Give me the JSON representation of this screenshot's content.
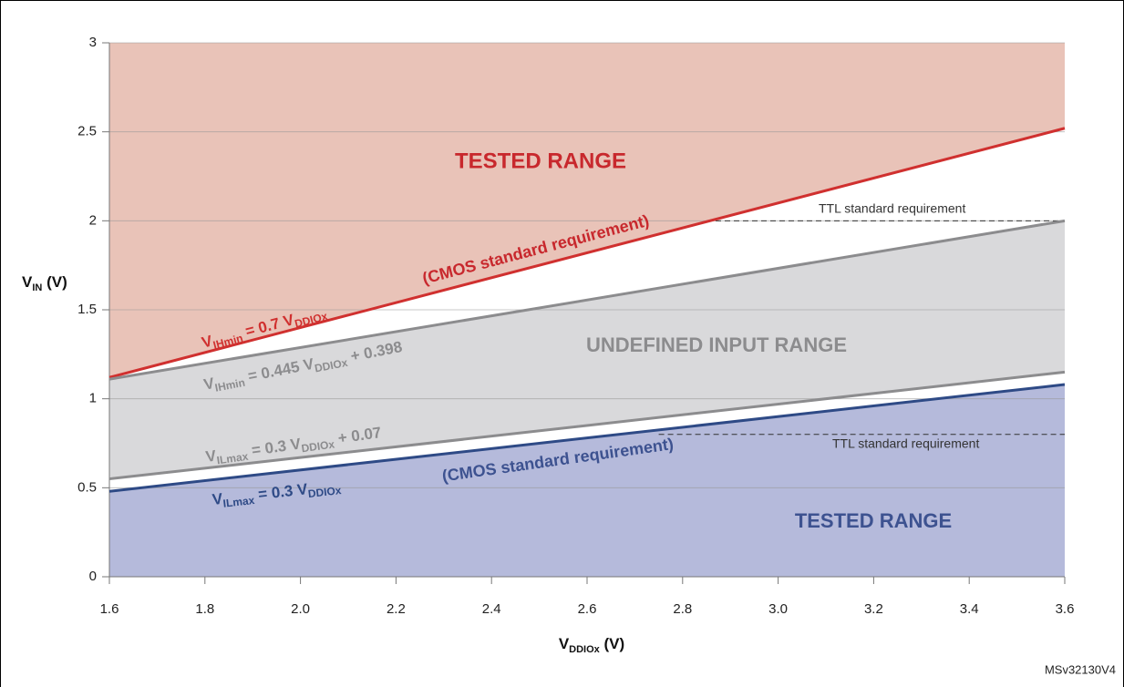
{
  "chart_data": {
    "type": "line",
    "xlim": [
      1.6,
      3.6
    ],
    "ylim": [
      0,
      3
    ],
    "xticks": [
      1.6,
      1.8,
      {
        "value": 2,
        "label": "2.0"
      },
      2.2,
      2.4,
      2.6,
      2.8,
      {
        "value": 3,
        "label": "3.0"
      },
      3.2,
      3.4,
      3.6
    ],
    "yticks": [
      0,
      0.5,
      1,
      1.5,
      2,
      2.5,
      3
    ],
    "grid": true,
    "x_label": [
      "V",
      "DDIOx",
      " (V)"
    ],
    "y_label": [
      "V",
      "IN",
      " (V)"
    ],
    "series": [
      {
        "label": [
          "V",
          "IHmin",
          " = 0.7 V",
          "DDIOx"
        ],
        "color": "#d0302f",
        "fill": "above",
        "fill_color": "#e9c3b8",
        "x": [
          1.6,
          3.6
        ],
        "values": [
          1.12,
          2.52
        ]
      },
      {
        "label": [
          "V",
          "IHmin",
          " = 0.445 V",
          "DDIOx",
          " + 0.398"
        ],
        "color": "#8c8c8e",
        "fill": "to_next",
        "fill_color": "#d9d9db",
        "x": [
          1.6,
          3.6
        ],
        "values": [
          1.11,
          2.0
        ]
      },
      {
        "label": [
          "V",
          "ILmax",
          " = 0.3 V",
          "DDIOx",
          " + 0.07"
        ],
        "color": "#8c8c8e",
        "fill": "none",
        "fill_color": "#d9d9db",
        "x": [
          1.6,
          3.6
        ],
        "values": [
          0.55,
          1.15
        ]
      },
      {
        "label": [
          "V",
          "ILmax",
          " = 0.3 V",
          "DDIOx"
        ],
        "color": "#2e4a86",
        "fill": "below",
        "fill_color": "#b5badb",
        "x": [
          1.6,
          3.6
        ],
        "values": [
          0.48,
          1.08
        ]
      }
    ],
    "annotations": [
      {
        "text": "TESTED RANGE",
        "color": "#c8282d"
      },
      {
        "text": "(CMOS standard requirement)",
        "color": "#c8282d"
      },
      {
        "text": "UNDEFINED INPUT RANGE",
        "color": "#8c8c8e"
      },
      {
        "text": "(CMOS standard requirement)",
        "color": "#3d5290"
      },
      {
        "text": "TESTED RANGE",
        "color": "#3d5290"
      }
    ],
    "reference_lines": [
      {
        "label": "TTL standard requirement",
        "value": 2,
        "x": [
          2.85,
          3.6
        ]
      },
      {
        "label": "TTL standard requirement",
        "value": 0.8,
        "x": [
          2.75,
          3.6
        ]
      }
    ],
    "footnote": "MSv32130V4"
  }
}
